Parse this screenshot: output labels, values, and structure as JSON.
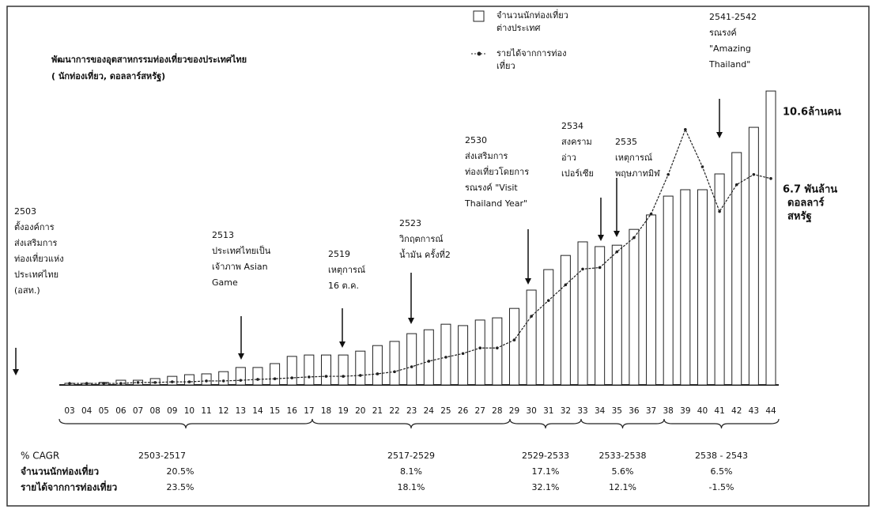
{
  "chart_data": {
    "type": "bar_line",
    "title": [
      "พัฒนาการของอุตสาหกรรมท่องเที่ยวของประเทศไทย",
      "( นักท่องเที่ยว, ดอลลาร์สหรัฐ)"
    ],
    "categories": [
      "03",
      "04",
      "05",
      "06",
      "07",
      "08",
      "09",
      "10",
      "11",
      "12",
      "13",
      "14",
      "15",
      "16",
      "17",
      "18",
      "19",
      "20",
      "21",
      "22",
      "23",
      "24",
      "25",
      "26",
      "27",
      "28",
      "29",
      "30",
      "31",
      "32",
      "33",
      "34",
      "35",
      "36",
      "37",
      "38",
      "39",
      "40",
      "41",
      "42",
      "43",
      "44"
    ],
    "series": [
      {
        "name": "จำนวนนักท่องเที่ยวต่างประเทศ",
        "kind": "bar",
        "color": "#ffffff",
        "values": [
          0.06,
          0.06,
          0.09,
          0.17,
          0.17,
          0.23,
          0.31,
          0.37,
          0.4,
          0.48,
          0.63,
          0.63,
          0.77,
          1.03,
          1.08,
          1.08,
          1.08,
          1.22,
          1.42,
          1.57,
          1.85,
          1.99,
          2.19,
          2.14,
          2.34,
          2.42,
          2.76,
          3.42,
          4.16,
          4.67,
          5.16,
          4.99,
          5.04,
          5.61,
          6.13,
          6.81,
          7.04,
          7.04,
          7.61,
          8.38,
          9.29,
          10.6
        ]
      },
      {
        "name": "รายได้จากการท่องเที่ยว",
        "kind": "line",
        "axis": "y2",
        "color": "#222222",
        "values": [
          0.05,
          0.05,
          0.05,
          0.05,
          0.08,
          0.08,
          0.1,
          0.1,
          0.13,
          0.13,
          0.15,
          0.18,
          0.2,
          0.23,
          0.26,
          0.28,
          0.28,
          0.31,
          0.36,
          0.43,
          0.59,
          0.77,
          0.9,
          1.02,
          1.2,
          1.2,
          1.46,
          2.23,
          2.74,
          3.25,
          3.76,
          3.81,
          4.32,
          4.78,
          5.55,
          6.83,
          8.29,
          7.08,
          5.63,
          6.5,
          6.83,
          6.7
        ]
      }
    ],
    "ylim": [
      0,
      12
    ],
    "y2lim": [
      0,
      10.8
    ],
    "end_labels": [
      [
        "10.6ล้านคน"
      ],
      [
        "6.7 พันล้าน",
        "ดอลลาร์",
        "สหรัฐ"
      ]
    ],
    "annotations": [
      [
        "2503",
        "ตั้งองค์การ",
        "ส่งเสริมการ",
        "ท่องเที่ยวแห่ง",
        "ประเทศไทย",
        "(อสท.)"
      ],
      [
        "2513",
        "ประเทศไทยเป็น",
        "เจ้าภาพ Asian",
        "Game"
      ],
      [
        "2519",
        "เหตุการณ์",
        "16 ต.ค."
      ],
      [
        "2523",
        "วิกฤตการณ์",
        "น้ำมัน ครั้งที่2"
      ],
      [
        "2530",
        "ส่งเสริมการ",
        "ท่องเที่ยวโดยการ",
        "รณรงค์ \"Visit",
        "Thailand Year\""
      ],
      [
        "2534",
        "สงคราม",
        "อ่าว",
        "เปอร์เซีย"
      ],
      [
        "2535",
        "เหตุการณ์",
        "พฤษภาทมิฬ"
      ],
      [
        "2541-2542",
        "รณรงค์",
        "\"Amazing",
        "Thailand\""
      ]
    ],
    "cagr": {
      "header": "% CAGR",
      "periods": [
        "2503-2517",
        "2517-2529",
        "2529-2533",
        "2533-2538",
        "2538 - 2543"
      ],
      "rows": [
        {
          "label": "จำนวนนักท่องเที่ยว",
          "values": [
            "20.5%",
            "8.1%",
            "17.1%",
            "5.6%",
            "6.5%"
          ]
        },
        {
          "label": "รายได้จากการท่องเที่ยว",
          "values": [
            "23.5%",
            "18.1%",
            "32.1%",
            "12.1%",
            "-1.5%"
          ]
        }
      ]
    }
  }
}
